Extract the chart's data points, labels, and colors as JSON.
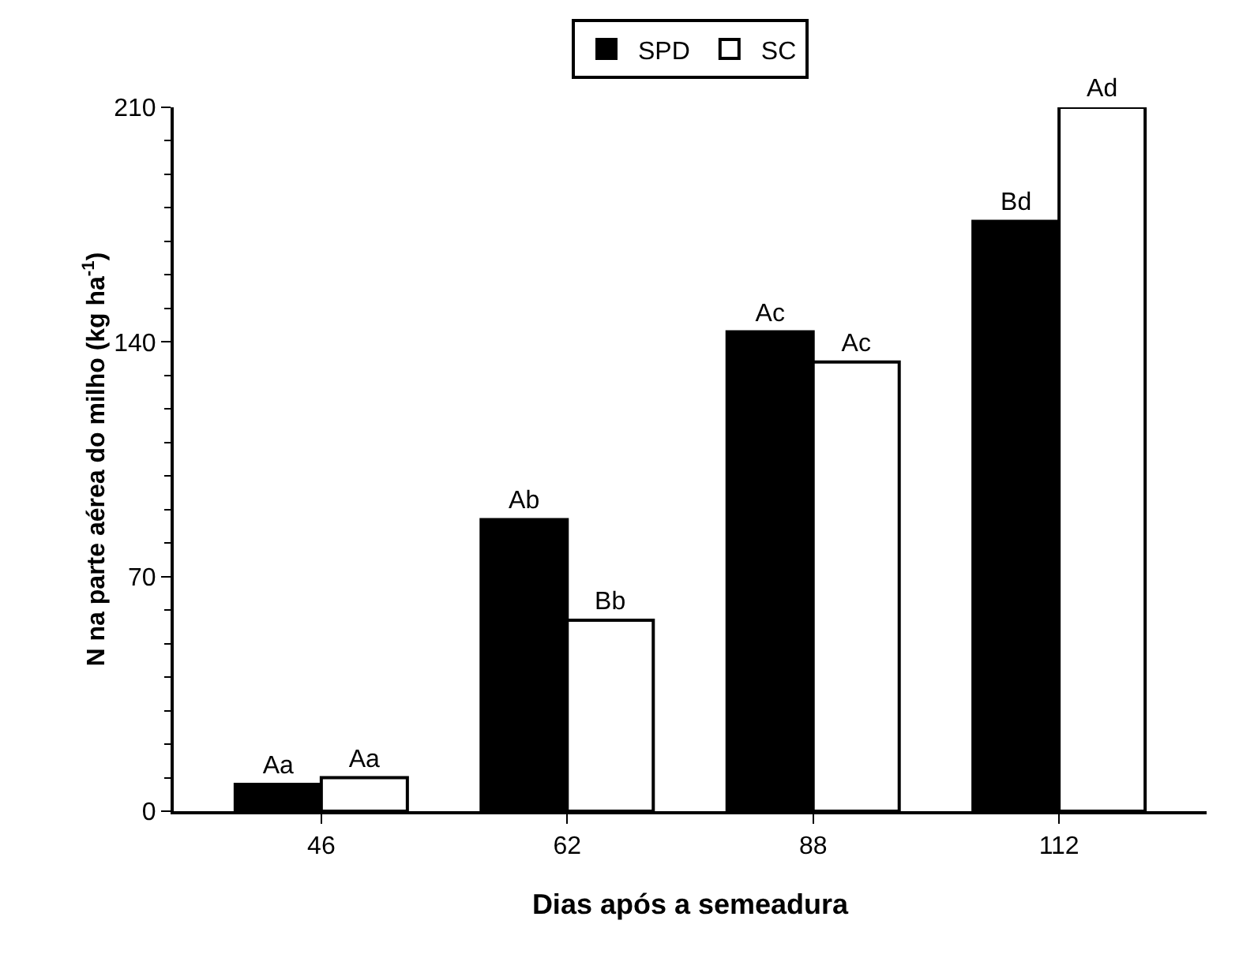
{
  "chart_data": {
    "type": "bar",
    "xlabel": "Dias após a semeadura",
    "ylabel": "N na parte aérea do milho (kg ha$^{-1}$)",
    "categories": [
      "46",
      "62",
      "88",
      "112"
    ],
    "series": [
      {
        "name": "SPD",
        "color": "#000000",
        "values": [
          8,
          87,
          143,
          176
        ],
        "value_labels": [
          "Aa",
          "Ab",
          "Ac",
          "Bd"
        ]
      },
      {
        "name": "SC",
        "color": "#ffffff",
        "values": [
          10,
          57,
          134,
          210
        ],
        "value_labels": [
          "Aa",
          "Bb",
          "Ac",
          "Ad"
        ]
      }
    ],
    "ylim": [
      0,
      210
    ],
    "yticks": [
      0,
      70,
      140,
      210
    ],
    "grid": false,
    "legend": "top"
  }
}
